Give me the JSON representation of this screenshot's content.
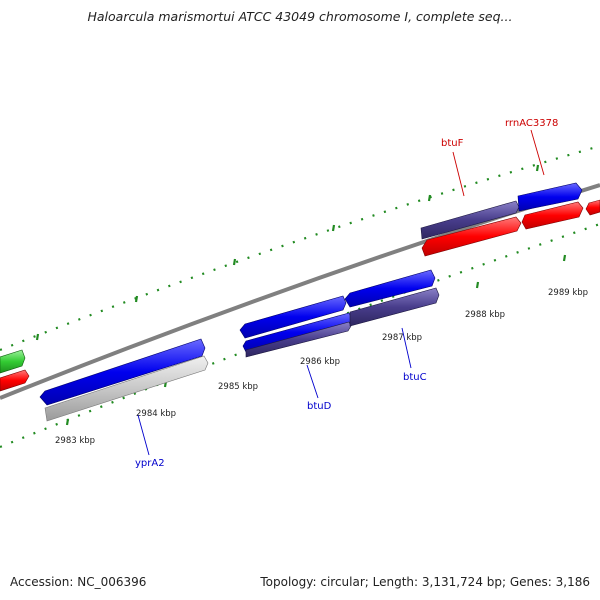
{
  "title": "Haloarcula marismortui ATCC 43049 chromosome I, complete seq...",
  "footer": {
    "accession": "Accession: NC_006396",
    "stats": "Topology: circular; Length: 3,131,724 bp; Genes: 3,186"
  },
  "ticks": [
    "2983 kbp",
    "2984 kbp",
    "2985 kbp",
    "2986 kbp",
    "2987 kbp",
    "2988 kbp",
    "2989 kbp"
  ],
  "genes": [
    {
      "label": "btuF",
      "color": "#cc0000"
    },
    {
      "label": "rrnAC3378",
      "color": "#cc0000"
    },
    {
      "label": "yprA2",
      "color": "#0000cc"
    },
    {
      "label": "btuD",
      "color": "#0000cc"
    },
    {
      "label": "btuC",
      "color": "#0000cc"
    }
  ],
  "colors": {
    "backbone": "#808080",
    "tick_dots": "#228b22",
    "forward_cds": "#0000ee",
    "reverse_rna": "#ff0000",
    "other": "#483d8b",
    "pseudo": "#c8c8c8",
    "green_feature": "#33cc33"
  }
}
